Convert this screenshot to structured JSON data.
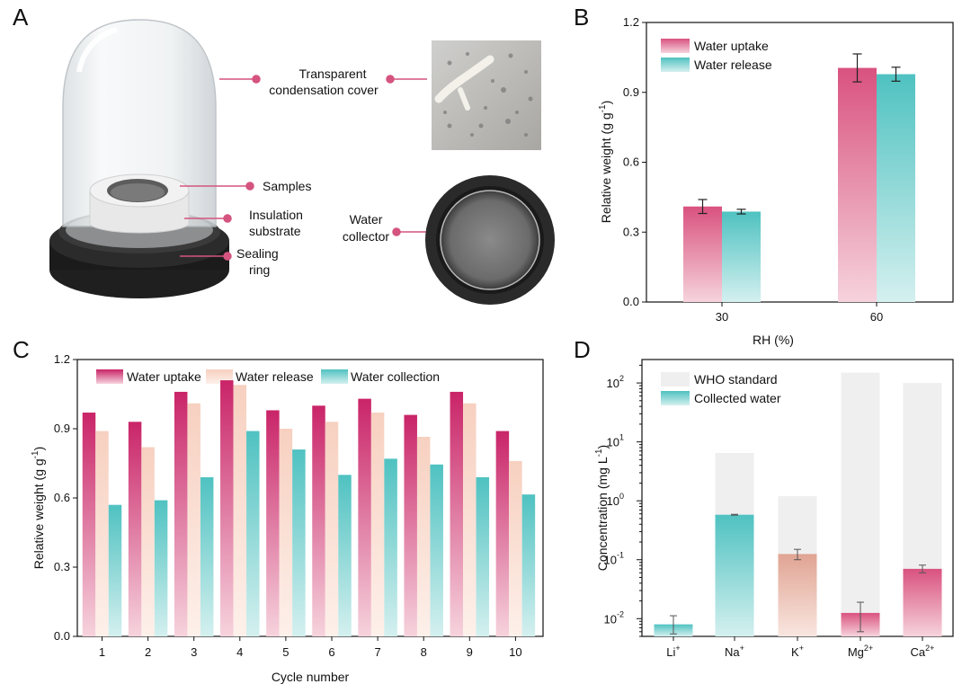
{
  "panels": {
    "a": "A",
    "b": "B",
    "c": "C",
    "d": "D"
  },
  "panel_a": {
    "labels": {
      "cover_1": "Transparent",
      "cover_2": "condensation cover",
      "samples": "Samples",
      "insulation_1": "Insulation",
      "insulation_2": "substrate",
      "sealing_1": "Sealing",
      "sealing_2": "ring",
      "collector_1": "Water",
      "collector_2": "collector"
    },
    "icons": [
      "glass-dome-icon",
      "condensation-photo",
      "water-collector-photo"
    ],
    "colors": {
      "callout": "#d4547f"
    }
  },
  "chart_data": [
    {
      "id": "B",
      "type": "bar",
      "categories": [
        "30",
        "60"
      ],
      "series": [
        {
          "name": "Water uptake",
          "values": [
            0.41,
            1.005
          ],
          "errors": [
            0.03,
            0.06
          ],
          "color": "#d9527f"
        },
        {
          "name": "Water release",
          "values": [
            0.388,
            0.978
          ],
          "errors": [
            0.01,
            0.03
          ],
          "color": "#4fc2c1"
        }
      ],
      "xlabel": "RH (%)",
      "ylabel": "Relative weight (g g-1)",
      "ylim": [
        0,
        1.2
      ],
      "yticks": [
        "0.0",
        "0.3",
        "0.6",
        "0.9",
        "1.2"
      ],
      "legend": "top-left",
      "grid": false
    },
    {
      "id": "C",
      "type": "bar",
      "categories": [
        "1",
        "2",
        "3",
        "4",
        "5",
        "6",
        "7",
        "8",
        "9",
        "10"
      ],
      "series": [
        {
          "name": "Water uptake",
          "values": [
            0.97,
            0.93,
            1.06,
            1.11,
            0.98,
            1.0,
            1.03,
            0.96,
            1.06,
            0.89
          ],
          "color": "#c92468"
        },
        {
          "name": "Water release",
          "values": [
            0.89,
            0.82,
            1.01,
            1.09,
            0.9,
            0.93,
            0.97,
            0.865,
            1.01,
            0.76
          ],
          "color": "#f7d0c0"
        },
        {
          "name": "Water collection",
          "values": [
            0.57,
            0.59,
            0.69,
            0.89,
            0.81,
            0.7,
            0.77,
            0.745,
            0.69,
            0.615
          ],
          "color": "#4fc2c1"
        }
      ],
      "xlabel": "Cycle number",
      "ylabel": "Relative weight (g g-1)",
      "ylim": [
        0,
        1.2
      ],
      "yticks": [
        "0.0",
        "0.3",
        "0.6",
        "0.9",
        "1.2"
      ],
      "legend": "top",
      "grid": false
    },
    {
      "id": "D",
      "type": "bar",
      "scale": "log",
      "categories": [
        "Li+",
        "Na+",
        "K+",
        "Mg2+",
        "Ca2+"
      ],
      "series": [
        {
          "name": "WHO standard",
          "values": [
            null,
            6.5,
            1.2,
            150,
            100
          ],
          "color": "#efefef"
        },
        {
          "name": "Collected water",
          "values": [
            0.008,
            0.58,
            0.125,
            0.0125,
            0.07
          ],
          "errors_low": [
            0.0055,
            0.57,
            0.1,
            0.006,
            0.06
          ],
          "errors_high": [
            0.0112,
            0.59,
            0.15,
            0.019,
            0.081
          ],
          "colors": [
            "#4fc2c1",
            "#4fc2c1",
            "#e0a493",
            "#d9527f",
            "#d9527f"
          ]
        }
      ],
      "xlabel": "",
      "ylabel": "Concentration (mg L-1)",
      "ylim": [
        0.005,
        250
      ],
      "legend": "top-left",
      "grid": false
    }
  ],
  "texts": {
    "b_legend_1": "Water uptake",
    "b_legend_2": "Water release",
    "b_xlabel": "RH (%)",
    "b_ylabel_main": "Relative weight (g g",
    "b_ylabel_sup": "-1",
    "b_ylabel_end": ")",
    "c_legend_1": "Water uptake",
    "c_legend_2": "Water release",
    "c_legend_3": "Water collection",
    "c_xlabel": "Cycle number",
    "c_ylabel_main": "Relative weight (g g",
    "c_ylabel_sup": "-1",
    "c_ylabel_end": ")",
    "d_legend_1": "WHO standard",
    "d_legend_2": "Collected water",
    "d_ylabel_main": "Concentration (mg L",
    "d_ylabel_sup": "-1",
    "d_ylabel_end": ")",
    "d_yticks": [
      {
        "base": "10",
        "exp": "-2"
      },
      {
        "base": "10",
        "exp": "-1"
      },
      {
        "base": "10",
        "exp": "0"
      },
      {
        "base": "10",
        "exp": "1"
      },
      {
        "base": "10",
        "exp": "2"
      }
    ],
    "d_xticks": [
      {
        "base": "Li",
        "sup": "+"
      },
      {
        "base": "Na",
        "sup": "+"
      },
      {
        "base": "K",
        "sup": "+"
      },
      {
        "base": "Mg",
        "sup": "2+"
      },
      {
        "base": "Ca",
        "sup": "2+"
      }
    ]
  }
}
